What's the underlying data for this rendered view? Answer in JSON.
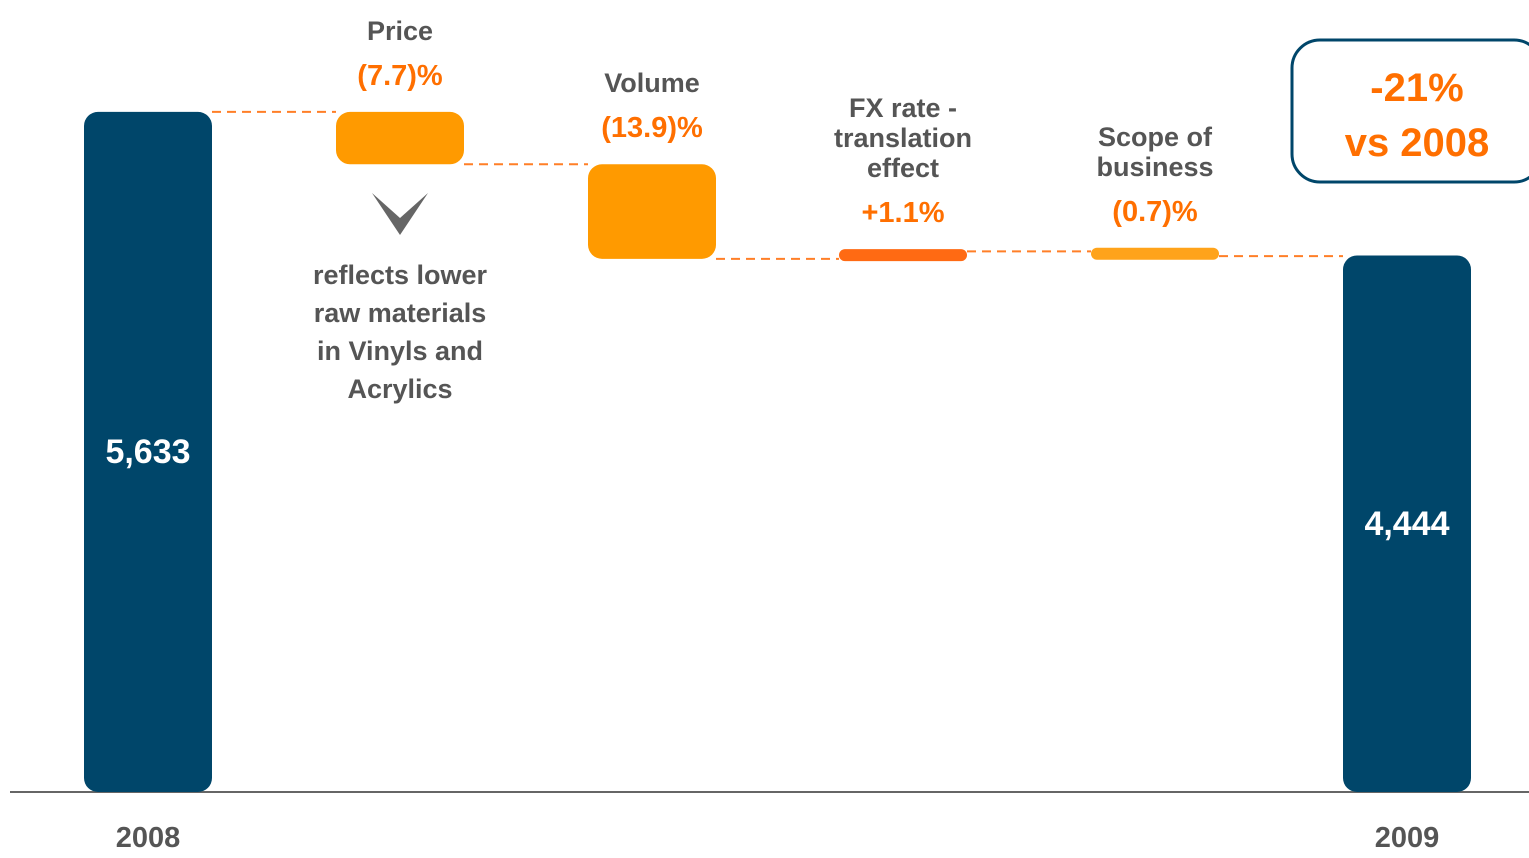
{
  "chart_data": {
    "type": "waterfall",
    "categories": [
      "2008",
      "Price",
      "Volume",
      "FX rate - translation effect",
      "Scope of business",
      "2009"
    ],
    "measures": [
      "total",
      "relative",
      "relative",
      "relative",
      "relative",
      "total"
    ],
    "values": [
      5633,
      -7.7,
      -13.9,
      1.1,
      -0.7,
      4444
    ],
    "value_labels": [
      "5,633",
      "(7.7)%",
      "(13.9)%",
      "+1.1%",
      "(0.7)%",
      "4,444"
    ],
    "colors": [
      "#00466a",
      "#ff9a00",
      "#ff9a00",
      "#ff6a13",
      "#ffa31a",
      "#00466a"
    ],
    "ylim": [
      0,
      6560
    ],
    "annotation": "reflects lower raw materials in Vinyls and Acrylics",
    "callout": [
      "-21%",
      "vs 2008"
    ]
  }
}
